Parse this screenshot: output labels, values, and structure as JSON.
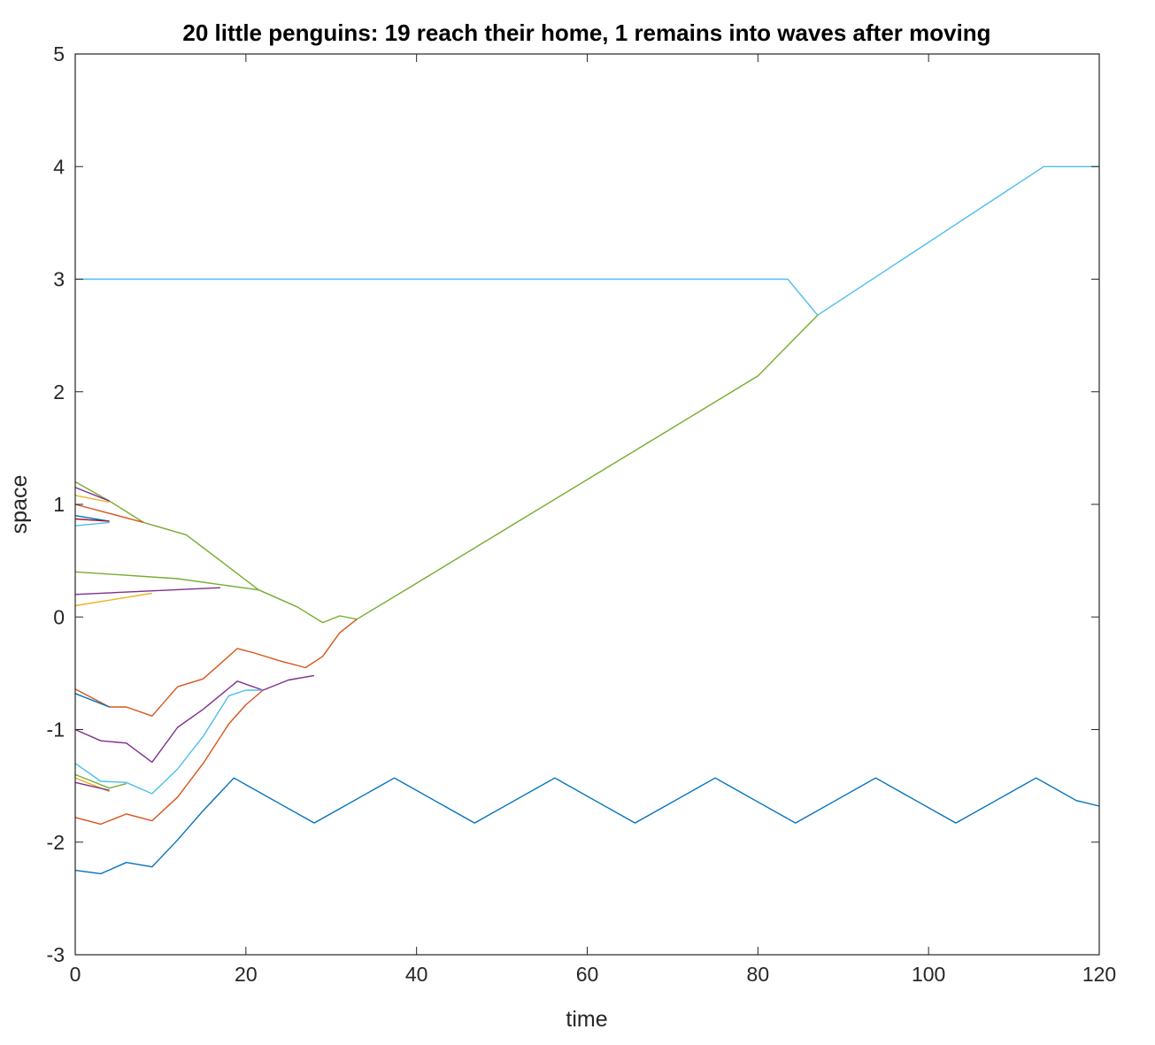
{
  "chart_data": {
    "type": "line",
    "title": "20 little penguins: 19 reach their home, 1 remains into waves after moving",
    "xlabel": "time",
    "ylabel": "space",
    "xlim": [
      0,
      120
    ],
    "ylim": [
      -3,
      5
    ],
    "xticks": [
      0,
      20,
      40,
      60,
      80,
      100,
      120
    ],
    "yticks": [
      -3,
      -2,
      -1,
      0,
      1,
      2,
      3,
      4,
      5
    ],
    "grid": false,
    "legend": "none",
    "series": [
      {
        "color": "#4DBEEE",
        "x": [
          0,
          83.5,
          87,
          113.5,
          120
        ],
        "y": [
          3.0,
          3.0,
          2.68,
          4.0,
          4.0
        ]
      },
      {
        "color": "#77AC30",
        "x": [
          0,
          4,
          8,
          13,
          17,
          21.5,
          26,
          29,
          31,
          33,
          40,
          50,
          60,
          70,
          80,
          87
        ],
        "y": [
          1.2,
          1.03,
          0.84,
          0.73,
          0.5,
          0.24,
          0.09,
          -0.05,
          0.01,
          -0.02,
          0.3,
          0.76,
          1.22,
          1.68,
          2.14,
          2.68
        ]
      },
      {
        "color": "#7E2F8E",
        "x": [
          0,
          4
        ],
        "y": [
          1.15,
          1.03
        ]
      },
      {
        "color": "#EDB120",
        "x": [
          0,
          4
        ],
        "y": [
          1.08,
          1.02
        ]
      },
      {
        "color": "#D95319",
        "x": [
          0,
          8
        ],
        "y": [
          1.0,
          0.84
        ]
      },
      {
        "color": "#0072BD",
        "x": [
          0,
          4
        ],
        "y": [
          0.9,
          0.85
        ]
      },
      {
        "color": "#A2142F",
        "x": [
          0,
          4
        ],
        "y": [
          0.87,
          0.85
        ]
      },
      {
        "color": "#4DBEEE",
        "x": [
          0,
          4
        ],
        "y": [
          0.81,
          0.84
        ]
      },
      {
        "color": "#77AC30",
        "x": [
          0,
          12,
          21.5
        ],
        "y": [
          0.4,
          0.34,
          0.24
        ]
      },
      {
        "color": "#7E2F8E",
        "x": [
          0,
          17
        ],
        "y": [
          0.2,
          0.26
        ]
      },
      {
        "color": "#EDB120",
        "x": [
          0,
          9
        ],
        "y": [
          0.1,
          0.21
        ]
      },
      {
        "color": "#D95319",
        "x": [
          0,
          2,
          4,
          6,
          9,
          12,
          15,
          19,
          21,
          24,
          27,
          29,
          31,
          33
        ],
        "y": [
          -0.64,
          -0.72,
          -0.8,
          -0.8,
          -0.88,
          -0.62,
          -0.55,
          -0.28,
          -0.32,
          -0.39,
          -0.45,
          -0.35,
          -0.14,
          -0.02
        ]
      },
      {
        "color": "#0072BD",
        "x": [
          0,
          4
        ],
        "y": [
          -0.68,
          -0.8
        ]
      },
      {
        "color": "#7E2F8E",
        "x": [
          0,
          3,
          6,
          9,
          12,
          15,
          19,
          22,
          25,
          28
        ],
        "y": [
          -1.0,
          -1.1,
          -1.12,
          -1.29,
          -0.98,
          -0.82,
          -0.57,
          -0.65,
          -0.56,
          -0.52
        ]
      },
      {
        "color": "#4DBEEE",
        "x": [
          0,
          3,
          6,
          9,
          12,
          15,
          18,
          20,
          22
        ],
        "y": [
          -1.3,
          -1.46,
          -1.47,
          -1.57,
          -1.35,
          -1.06,
          -0.7,
          -0.65,
          -0.65
        ]
      },
      {
        "color": "#77AC30",
        "x": [
          0,
          4,
          6
        ],
        "y": [
          -1.4,
          -1.52,
          -1.48
        ]
      },
      {
        "color": "#EDB120",
        "x": [
          0,
          4
        ],
        "y": [
          -1.43,
          -1.55
        ]
      },
      {
        "color": "#7E2F8E",
        "x": [
          0,
          4
        ],
        "y": [
          -1.47,
          -1.54
        ]
      },
      {
        "color": "#D95319",
        "x": [
          0,
          3,
          6,
          9,
          12,
          15,
          18,
          20,
          22
        ],
        "y": [
          -1.78,
          -1.84,
          -1.75,
          -1.81,
          -1.6,
          -1.3,
          -0.95,
          -0.78,
          -0.65
        ]
      },
      {
        "color": "#0072BD",
        "x": [
          0,
          3,
          6,
          9,
          12,
          15,
          18.6,
          23.3,
          28,
          32.7,
          37.4,
          42.1,
          46.8,
          51.5,
          56.2,
          60.9,
          65.6,
          70.3,
          75,
          79.7,
          84.4,
          89.1,
          93.8,
          98.5,
          103.2,
          107.9,
          112.6,
          117.3,
          120
        ],
        "y": [
          -2.25,
          -2.28,
          -2.18,
          -2.22,
          -1.98,
          -1.72,
          -1.43,
          -1.63,
          -1.83,
          -1.63,
          -1.43,
          -1.63,
          -1.83,
          -1.63,
          -1.43,
          -1.63,
          -1.83,
          -1.63,
          -1.43,
          -1.63,
          -1.83,
          -1.63,
          -1.43,
          -1.63,
          -1.83,
          -1.63,
          -1.43,
          -1.63,
          -1.68
        ]
      }
    ]
  }
}
